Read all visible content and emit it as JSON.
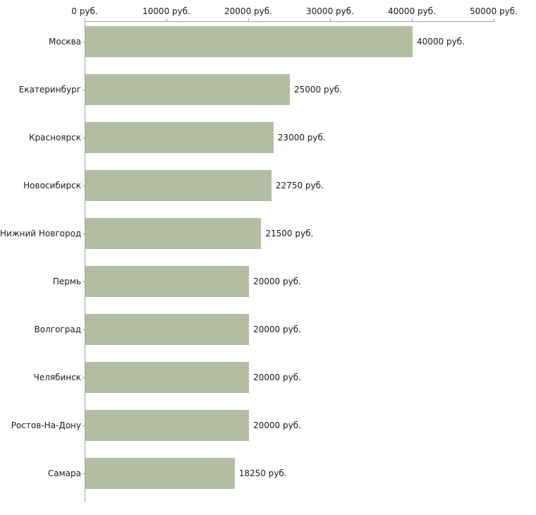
{
  "chart_data": {
    "type": "bar",
    "orientation": "horizontal",
    "title": "",
    "xlabel": "",
    "ylabel": "",
    "unit": "руб.",
    "categories": [
      "Москва",
      "Екатеринбург",
      "Красноярск",
      "Новосибирск",
      "Нижний Новгород",
      "Пермь",
      "Волгоград",
      "Челябинск",
      "Ростов-На-Дону",
      "Самара"
    ],
    "values": [
      40000,
      25000,
      23000,
      22750,
      21500,
      20000,
      20000,
      20000,
      20000,
      18250
    ],
    "value_labels": [
      "40000 руб.",
      "25000 руб.",
      "23000 руб.",
      "22750 руб.",
      "21500 руб.",
      "20000 руб.",
      "20000 руб.",
      "20000 руб.",
      "20000 руб.",
      "18250 руб."
    ],
    "x_ticks": [
      {
        "value": 0,
        "label": "0 руб."
      },
      {
        "value": 10000,
        "label": "10000 руб."
      },
      {
        "value": 20000,
        "label": "20000 руб."
      },
      {
        "value": 30000,
        "label": "30000 руб."
      },
      {
        "value": 40000,
        "label": "40000 руб."
      },
      {
        "value": 50000,
        "label": "50000 руб."
      }
    ],
    "xlim": [
      0,
      50000
    ],
    "grid": false,
    "legend": false,
    "axis_position": "top-left",
    "bar_color": "#b4bda2",
    "axis_color": "#a3a3a3",
    "text_color": "#1a1a1a",
    "background_color": "#ffffff"
  }
}
